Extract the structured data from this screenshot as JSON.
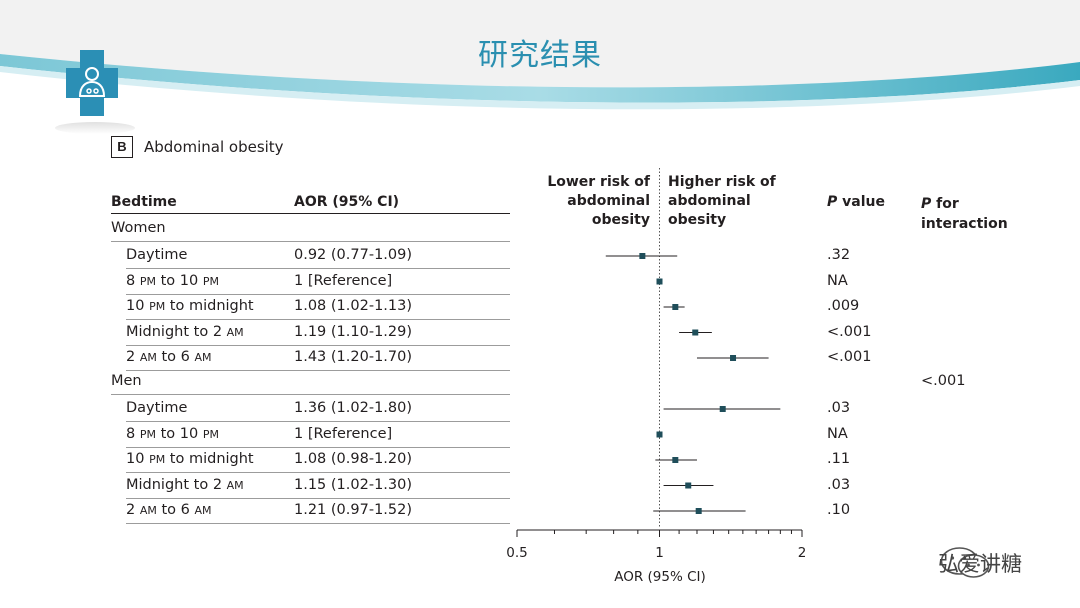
{
  "slide_title": "研究结果",
  "watermark_text": "弘爱讲糖",
  "panel": {
    "letter": "B",
    "title": "Abdominal obesity"
  },
  "columns": {
    "bedtime": "Bedtime",
    "aor": "AOR (95% CI)",
    "lower_risk": "Lower risk of abdominal obesity",
    "higher_risk": "Higher risk of abdominal obesity",
    "p_italic": "P",
    "p_rest": " value",
    "interaction_italic": "P",
    "interaction_rest": " for interaction"
  },
  "colors": {
    "title": "#2a8fb0",
    "band_teal": "#3ab0c4",
    "marker": "#1f4e5a"
  },
  "groups": [
    {
      "name": "Women",
      "interaction": ""
    },
    {
      "name": "Men",
      "interaction": "<.001"
    }
  ],
  "rows": [
    {
      "group": 0,
      "label": "Daytime",
      "aor_text": "0.92 (0.77-1.09)",
      "p": ".32",
      "est": 0.92,
      "lo": 0.77,
      "hi": 1.09
    },
    {
      "group": 0,
      "label": "8 PM to 10 PM",
      "aor_text": "1 [Reference]",
      "p": "NA",
      "est": 1.0,
      "lo": 1.0,
      "hi": 1.0
    },
    {
      "group": 0,
      "label": "10 PM to midnight",
      "aor_text": "1.08 (1.02-1.13)",
      "p": ".009",
      "est": 1.08,
      "lo": 1.02,
      "hi": 1.13
    },
    {
      "group": 0,
      "label": "Midnight to 2 AM",
      "aor_text": "1.19 (1.10-1.29)",
      "p": "<.001",
      "est": 1.19,
      "lo": 1.1,
      "hi": 1.29
    },
    {
      "group": 0,
      "label": "2 AM to 6 AM",
      "aor_text": "1.43 (1.20-1.70)",
      "p": "<.001",
      "est": 1.43,
      "lo": 1.2,
      "hi": 1.7
    },
    {
      "group": 1,
      "label": "Daytime",
      "aor_text": "1.36 (1.02-1.80)",
      "p": ".03",
      "est": 1.36,
      "lo": 1.02,
      "hi": 1.8
    },
    {
      "group": 1,
      "label": "8 PM to 10 PM",
      "aor_text": "1 [Reference]",
      "p": "NA",
      "est": 1.0,
      "lo": 1.0,
      "hi": 1.0
    },
    {
      "group": 1,
      "label": "10 PM to midnight",
      "aor_text": "1.08 (0.98-1.20)",
      "p": ".11",
      "est": 1.08,
      "lo": 0.98,
      "hi": 1.2
    },
    {
      "group": 1,
      "label": "Midnight to 2 AM",
      "aor_text": "1.15 (1.02-1.30)",
      "p": ".03",
      "est": 1.15,
      "lo": 1.02,
      "hi": 1.3
    },
    {
      "group": 1,
      "label": "2 AM to 6 AM",
      "aor_text": "1.21 (0.97-1.52)",
      "p": ".10",
      "est": 1.21,
      "lo": 0.97,
      "hi": 1.52
    }
  ],
  "chart_data": {
    "type": "forest",
    "xlabel": "AOR (95% CI)",
    "x_scale": "log",
    "xlim": [
      0.5,
      2
    ],
    "ticks": [
      0.5,
      1,
      2
    ],
    "minor_ticks": [
      0.6,
      0.7,
      0.8,
      0.9,
      1.1,
      1.2,
      1.3,
      1.4,
      1.5,
      1.6,
      1.7,
      1.8,
      1.9
    ],
    "reference_line": 1,
    "series": [
      {
        "name": "Women",
        "categories": [
          "Daytime",
          "8 PM to 10 PM",
          "10 PM to midnight",
          "Midnight to 2 AM",
          "2 AM to 6 AM"
        ],
        "values": [
          0.92,
          1.0,
          1.08,
          1.19,
          1.43
        ],
        "ci_low": [
          0.77,
          1.0,
          1.02,
          1.1,
          1.2
        ],
        "ci_high": [
          1.09,
          1.0,
          1.13,
          1.29,
          1.7
        ]
      },
      {
        "name": "Men",
        "categories": [
          "Daytime",
          "8 PM to 10 PM",
          "10 PM to midnight",
          "Midnight to 2 AM",
          "2 AM to 6 AM"
        ],
        "values": [
          1.36,
          1.0,
          1.08,
          1.15,
          1.21
        ],
        "ci_low": [
          1.02,
          1.0,
          0.98,
          1.02,
          0.97
        ],
        "ci_high": [
          1.8,
          1.0,
          1.2,
          1.3,
          1.52
        ]
      }
    ]
  }
}
